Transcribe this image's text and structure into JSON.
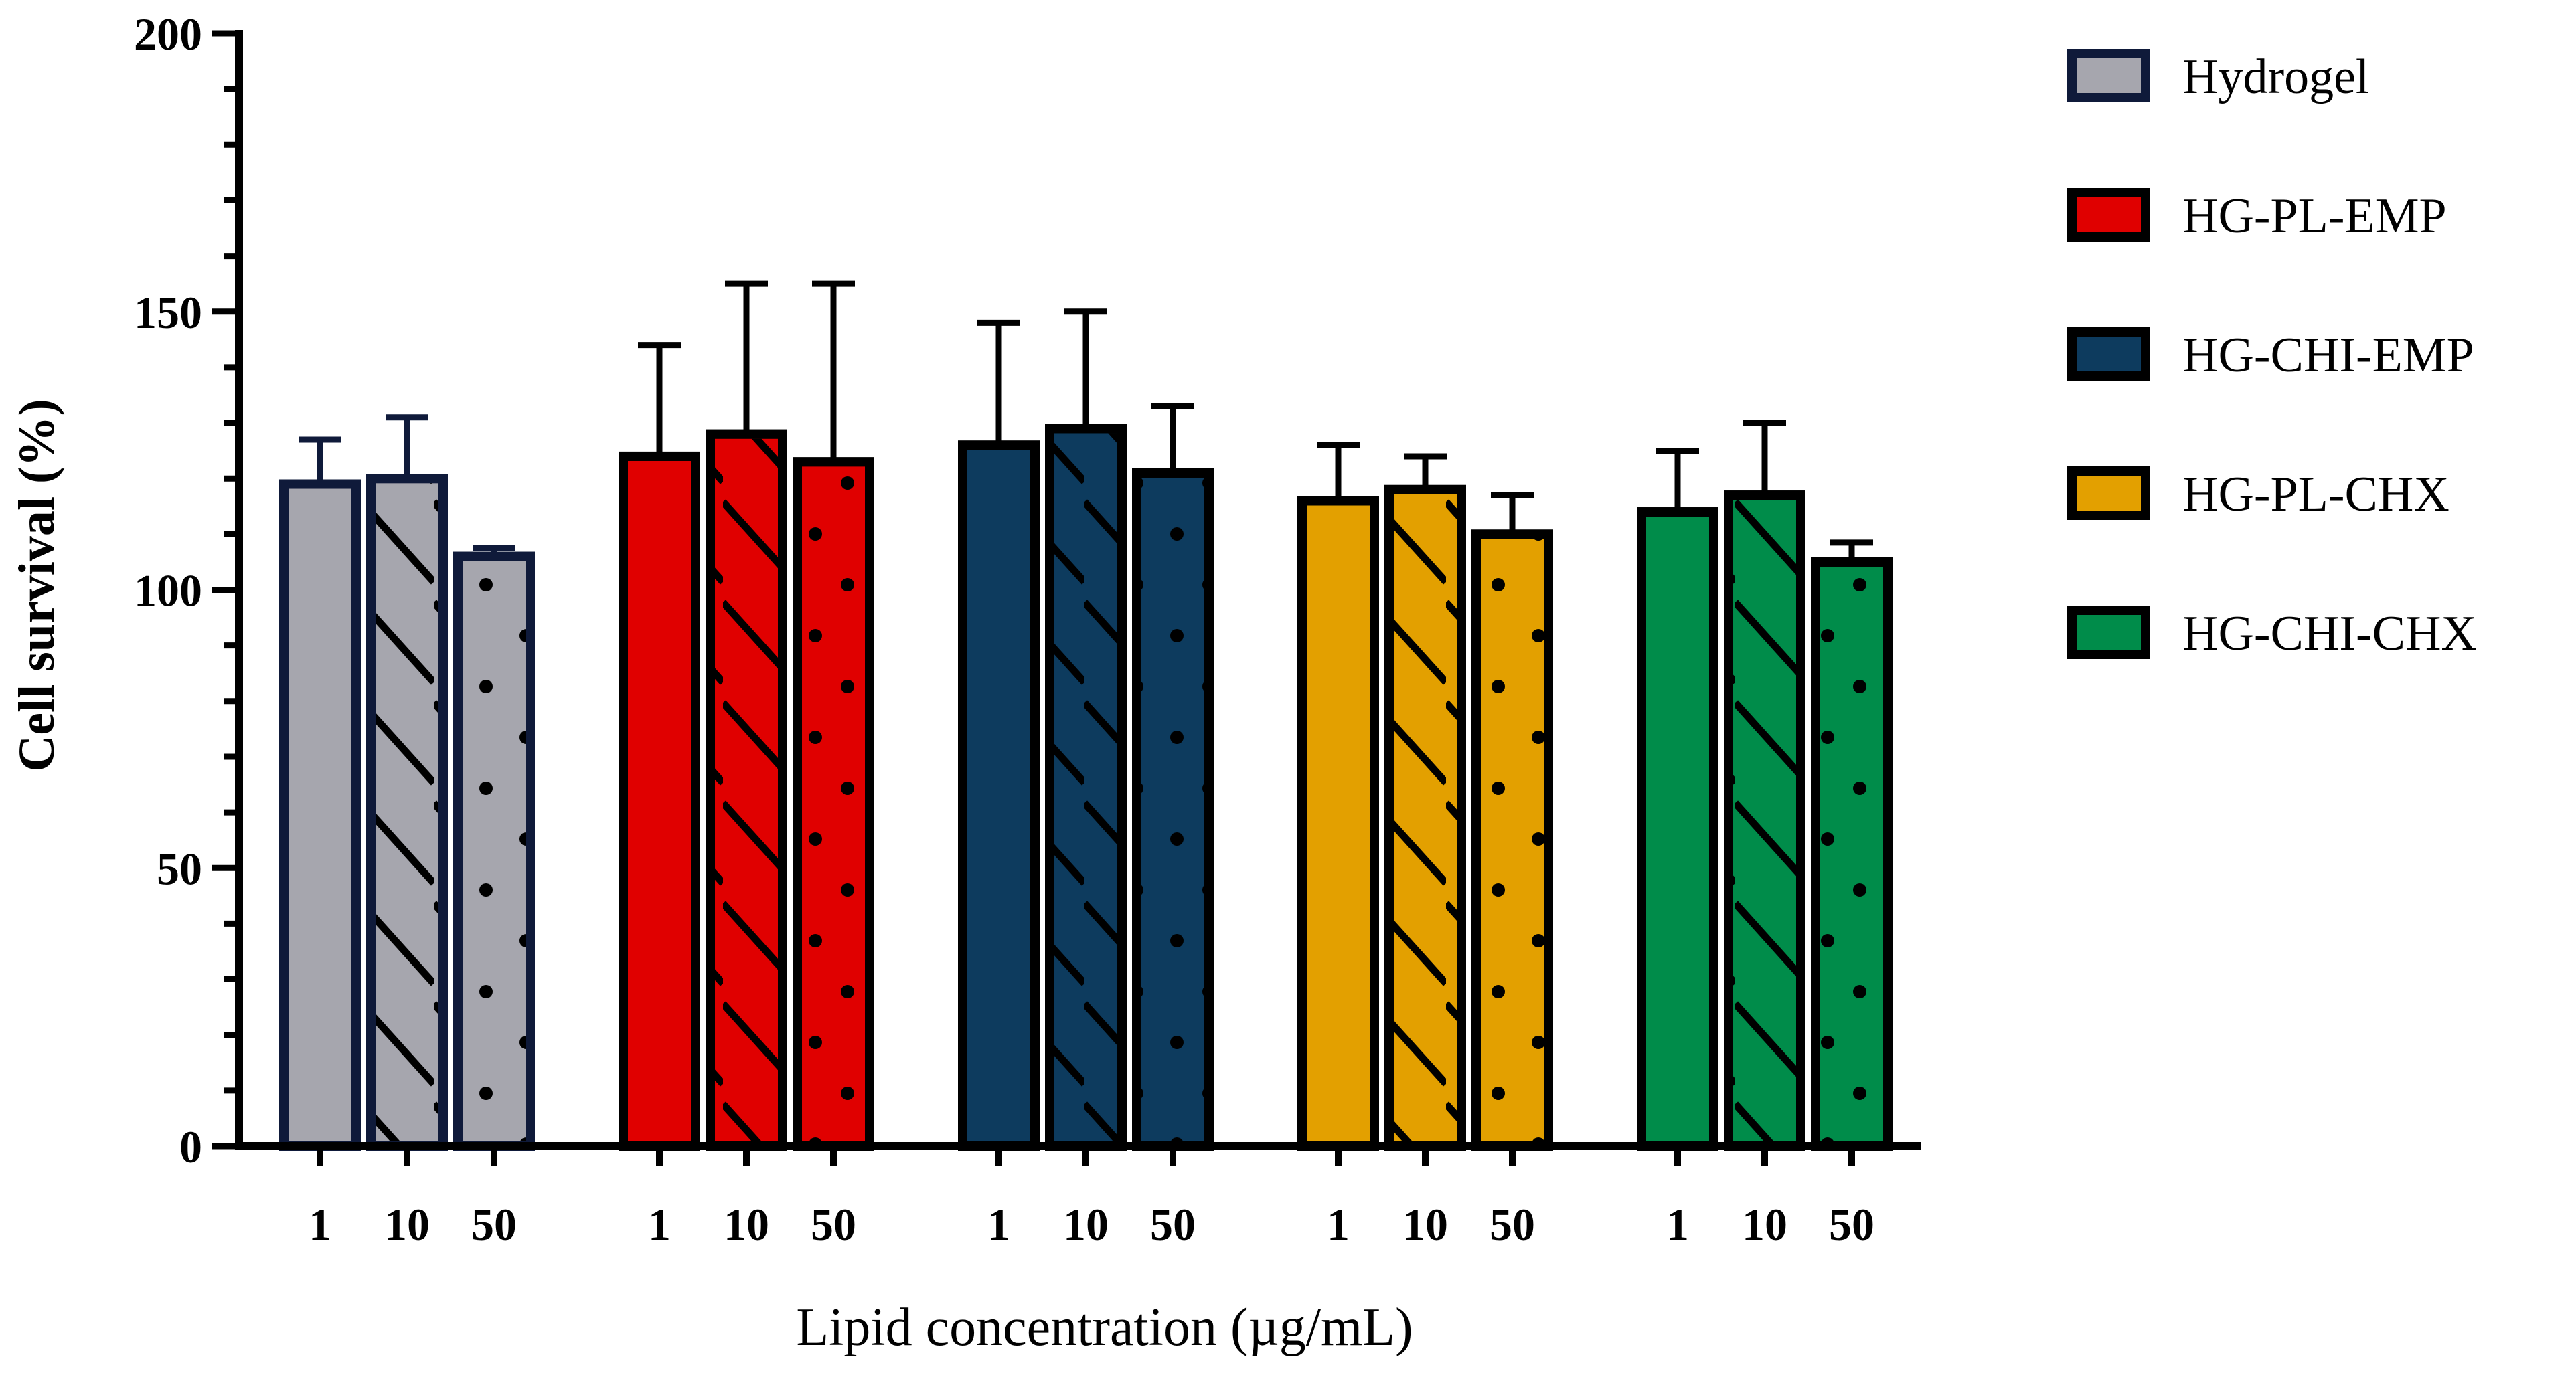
{
  "chart_data": {
    "type": "bar",
    "title": "",
    "xlabel": "Lipid concentration (µg/mL)",
    "ylabel": "Cell survival (%)",
    "ylim": [
      0,
      200
    ],
    "yticks": [
      0,
      50,
      100,
      150,
      200
    ],
    "grid": false,
    "legend_position": "top-right",
    "categories": [
      "1",
      "10",
      "50"
    ],
    "category_patterns": [
      "solid",
      "hatch",
      "dots"
    ],
    "series": [
      {
        "name": "Hydrogel",
        "color": "#a6a6ae",
        "edge": "#0f1a3a",
        "values": [
          119,
          120,
          106
        ],
        "errors": [
          8,
          11,
          1.5
        ]
      },
      {
        "name": "HG-PL-EMP",
        "color": "#e00000",
        "edge": "#000000",
        "values": [
          124,
          128,
          123
        ],
        "errors": [
          20,
          27,
          32
        ]
      },
      {
        "name": "HG-CHI-EMP",
        "color": "#0d3b5e",
        "edge": "#000000",
        "values": [
          126,
          129,
          121
        ],
        "errors": [
          22,
          21,
          12
        ]
      },
      {
        "name": "HG-PL-CHX",
        "color": "#e3a000",
        "edge": "#000000",
        "values": [
          116,
          118,
          110
        ],
        "errors": [
          10,
          6,
          7
        ]
      },
      {
        "name": "HG-CHI-CHX",
        "color": "#008c4a",
        "edge": "#000000",
        "values": [
          114,
          117,
          105
        ],
        "errors": [
          11,
          13,
          3.5
        ]
      }
    ]
  }
}
